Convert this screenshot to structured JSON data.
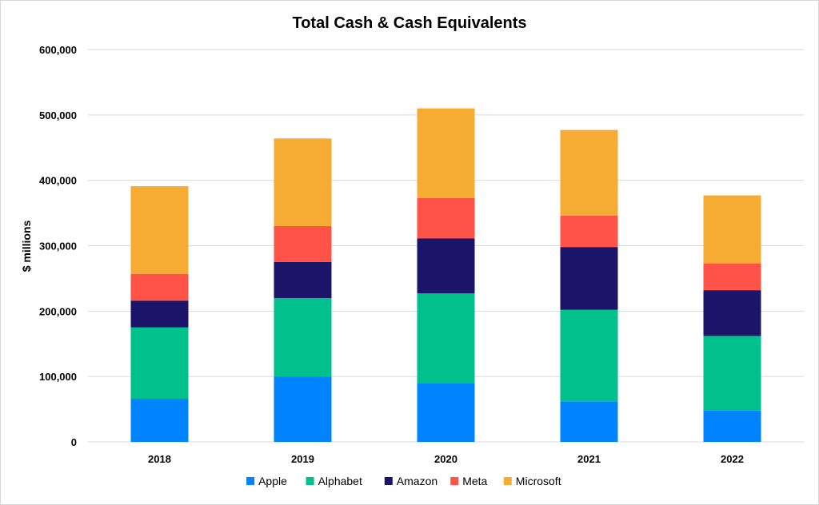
{
  "chart_data": {
    "type": "bar",
    "stacked": true,
    "title": "Total Cash & Cash Equivalents",
    "xlabel": "",
    "ylabel": "$ millions",
    "categories": [
      "2018",
      "2019",
      "2020",
      "2021",
      "2022"
    ],
    "ylim": [
      0,
      600000
    ],
    "yticks": [
      0,
      100000,
      200000,
      300000,
      400000,
      500000,
      600000
    ],
    "ytick_labels": [
      "0",
      "100,000",
      "200,000",
      "300,000",
      "400,000",
      "500,000",
      "600,000"
    ],
    "grid": true,
    "legend_position": "bottom",
    "series": [
      {
        "name": "Apple",
        "color": "#0083FF",
        "values": [
          66000,
          100000,
          90000,
          62000,
          48000
        ]
      },
      {
        "name": "Alphabet",
        "color": "#00C08B",
        "values": [
          109000,
          120000,
          137000,
          140000,
          114000
        ]
      },
      {
        "name": "Amazon",
        "color": "#1C1468",
        "values": [
          41000,
          55000,
          84000,
          96000,
          70000
        ]
      },
      {
        "name": "Meta",
        "color": "#FF5347",
        "values": [
          41000,
          55000,
          62000,
          48000,
          41000
        ]
      },
      {
        "name": "Microsoft",
        "color": "#F6AC33",
        "values": [
          134000,
          134000,
          137000,
          131000,
          104000
        ]
      }
    ]
  }
}
